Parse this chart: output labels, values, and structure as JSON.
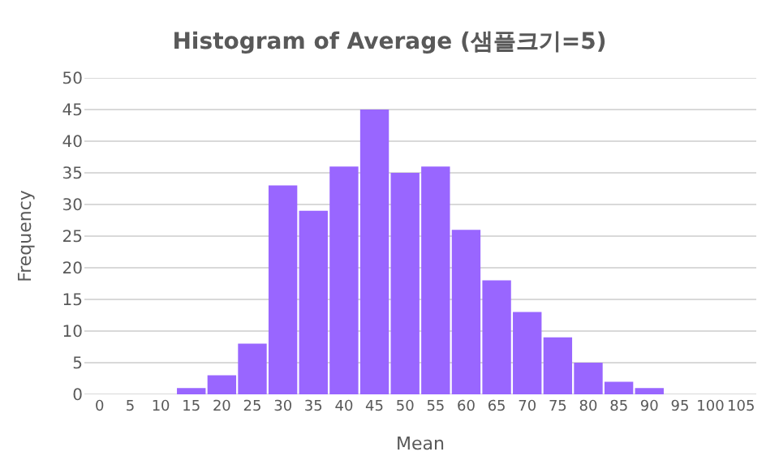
{
  "chart_data": {
    "type": "bar",
    "title": "Histogram of Average (샘플크기=5)",
    "xlabel": "Mean",
    "ylabel": "Frequency",
    "categories": [
      "0",
      "5",
      "10",
      "15",
      "20",
      "25",
      "30",
      "35",
      "40",
      "45",
      "50",
      "55",
      "60",
      "65",
      "70",
      "75",
      "80",
      "85",
      "90",
      "95",
      "100",
      "105"
    ],
    "values": [
      0,
      0,
      0,
      1,
      3,
      8,
      33,
      29,
      36,
      45,
      35,
      36,
      26,
      18,
      13,
      9,
      5,
      2,
      1,
      0,
      0,
      0
    ],
    "color": "#9966ff",
    "ylim": [
      0,
      50
    ],
    "yticks": [
      0,
      5,
      10,
      15,
      20,
      25,
      30,
      35,
      40,
      45,
      50
    ],
    "grid": "y"
  }
}
